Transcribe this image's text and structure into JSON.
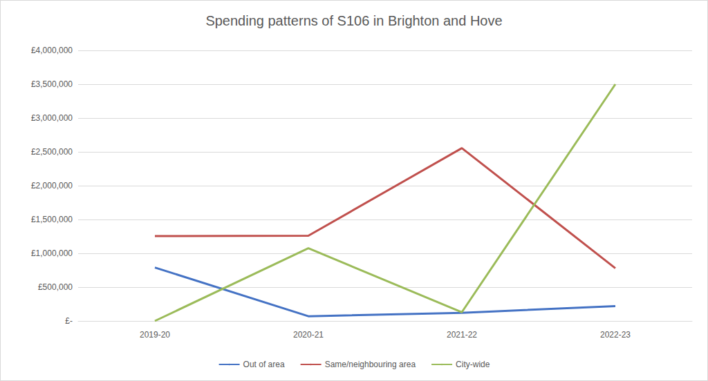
{
  "chart_data": {
    "type": "line",
    "title": "Spending patterns of S106 in Brighton and Hove",
    "categories": [
      "2019-20",
      "2020-21",
      "2021-22",
      "2022-23"
    ],
    "series": [
      {
        "name": "Out of area",
        "color": "#4472c4",
        "values": [
          790000,
          70000,
          120000,
          220000
        ]
      },
      {
        "name": "Same/neighbouring area",
        "color": "#c0504d",
        "values": [
          1255000,
          1260000,
          2555000,
          780000
        ]
      },
      {
        "name": "City-wide",
        "color": "#9bbb59",
        "values": [
          0,
          1075000,
          130000,
          3500000
        ]
      }
    ],
    "ylim": [
      0,
      4000000
    ],
    "yticks": [
      {
        "value": 0,
        "label": "£-"
      },
      {
        "value": 500000,
        "label": "£500,000"
      },
      {
        "value": 1000000,
        "label": "£1,000,000"
      },
      {
        "value": 1500000,
        "label": "£1,500,000"
      },
      {
        "value": 2000000,
        "label": "£2,000,000"
      },
      {
        "value": 2500000,
        "label": "£2,500,000"
      },
      {
        "value": 3000000,
        "label": "£3,000,000"
      },
      {
        "value": 3500000,
        "label": "£3,500,000"
      },
      {
        "value": 4000000,
        "label": "£4,000,000"
      }
    ],
    "grid": true,
    "legend": "bottom"
  }
}
